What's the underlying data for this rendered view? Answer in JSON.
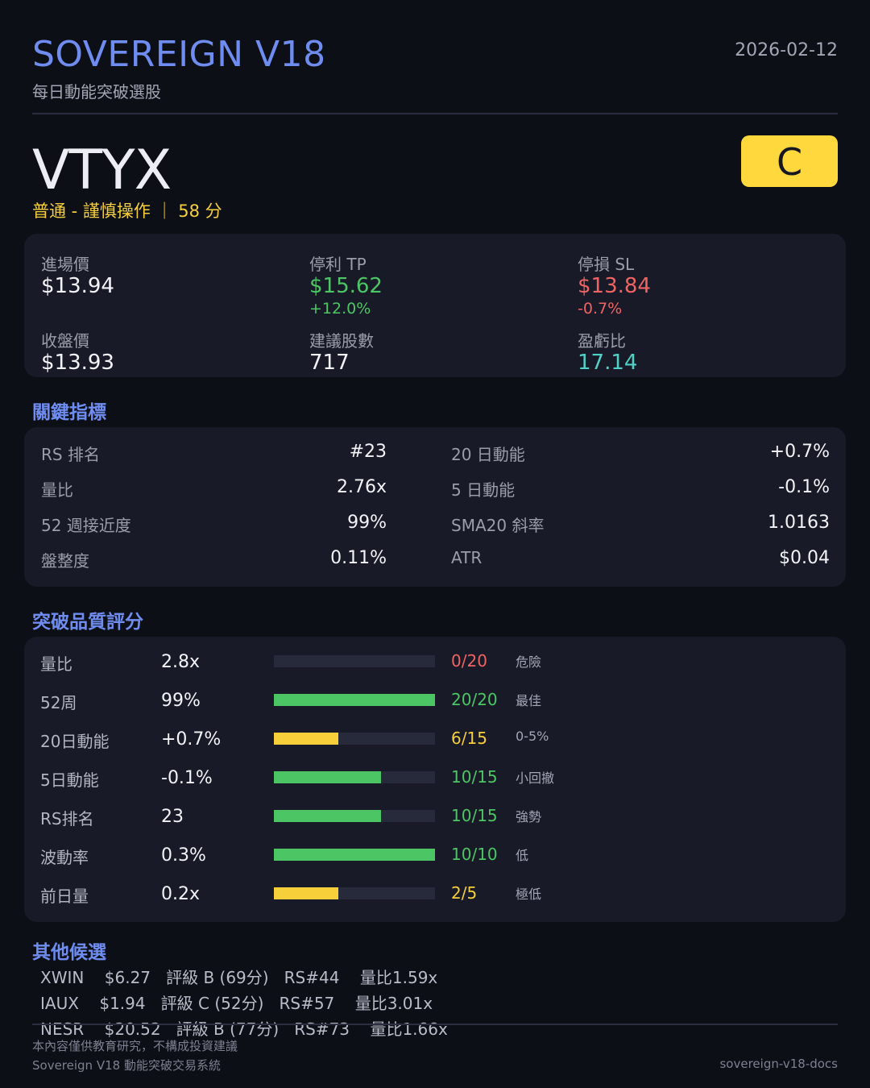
{
  "header": {
    "brand": "SOVEREIGN V18",
    "subtitle": "每日動能突破選股",
    "date": "2026-02-12"
  },
  "stock": {
    "ticker": "VTYX",
    "rating_text": "普通 - 謹慎操作 ｜ 58 分",
    "grade": "C"
  },
  "price_card": {
    "entry": {
      "label": "進場價",
      "value": "$13.94"
    },
    "tp": {
      "label": "停利 TP",
      "value": "$15.62",
      "pct": "+12.0%"
    },
    "sl": {
      "label": "停損 SL",
      "value": "$13.84",
      "pct": "-0.7%"
    },
    "close": {
      "label": "收盤價",
      "value": "$13.93"
    },
    "shares": {
      "label": "建議股數",
      "value": "717"
    },
    "rr": {
      "label": "盈虧比",
      "value": "17.14"
    }
  },
  "key_metrics": {
    "title": "關鍵指標",
    "left": [
      {
        "label": "RS 排名",
        "value": "#23"
      },
      {
        "label": "量比",
        "value": "2.76x"
      },
      {
        "label": "52 週接近度",
        "value": "99%"
      },
      {
        "label": "盤整度",
        "value": "0.11%"
      }
    ],
    "right": [
      {
        "label": "20 日動能",
        "value": "+0.7%"
      },
      {
        "label": "5 日動能",
        "value": "-0.1%"
      },
      {
        "label": "SMA20 斜率",
        "value": "1.0163"
      },
      {
        "label": "ATR",
        "value": "$0.04"
      }
    ]
  },
  "quality": {
    "title": "突破品質評分",
    "rows": [
      {
        "name": "量比",
        "value": "2.8x",
        "score": "0/20",
        "fraction": 0.0,
        "note": "危險",
        "color": "#ef6363"
      },
      {
        "name": "52周",
        "value": "99%",
        "score": "20/20",
        "fraction": 1.0,
        "note": "最佳",
        "color": "#4cc665"
      },
      {
        "name": "20日動能",
        "value": "+0.7%",
        "score": "6/15",
        "fraction": 0.4,
        "note": "0-5%",
        "color": "#f6cf3a"
      },
      {
        "name": "5日動能",
        "value": "-0.1%",
        "score": "10/15",
        "fraction": 0.667,
        "note": "小回撤",
        "color": "#4cc665"
      },
      {
        "name": "RS排名",
        "value": "23",
        "score": "10/15",
        "fraction": 0.667,
        "note": "強勢",
        "color": "#4cc665"
      },
      {
        "name": "波動率",
        "value": "0.3%",
        "score": "10/10",
        "fraction": 1.0,
        "note": "低",
        "color": "#4cc665"
      },
      {
        "name": "前日量",
        "value": "0.2x",
        "score": "2/5",
        "fraction": 0.4,
        "note": "極低",
        "color": "#f6cf3a"
      }
    ]
  },
  "others": {
    "title": "其他候選",
    "items": [
      "XWIN    $6.27   評級 B (69分)   RS#44    量比1.59x",
      "IAUX    $1.94   評級 C (52分)   RS#57    量比3.01x",
      "NESR    $20.52   評級 B (77分)   RS#73    量比1.66x"
    ]
  },
  "footer": {
    "disclaimer": "本內容僅供教育研究，不構成投資建議",
    "system": "Sovereign V18 動能突破交易系統",
    "docs": "sovereign-v18-docs"
  }
}
